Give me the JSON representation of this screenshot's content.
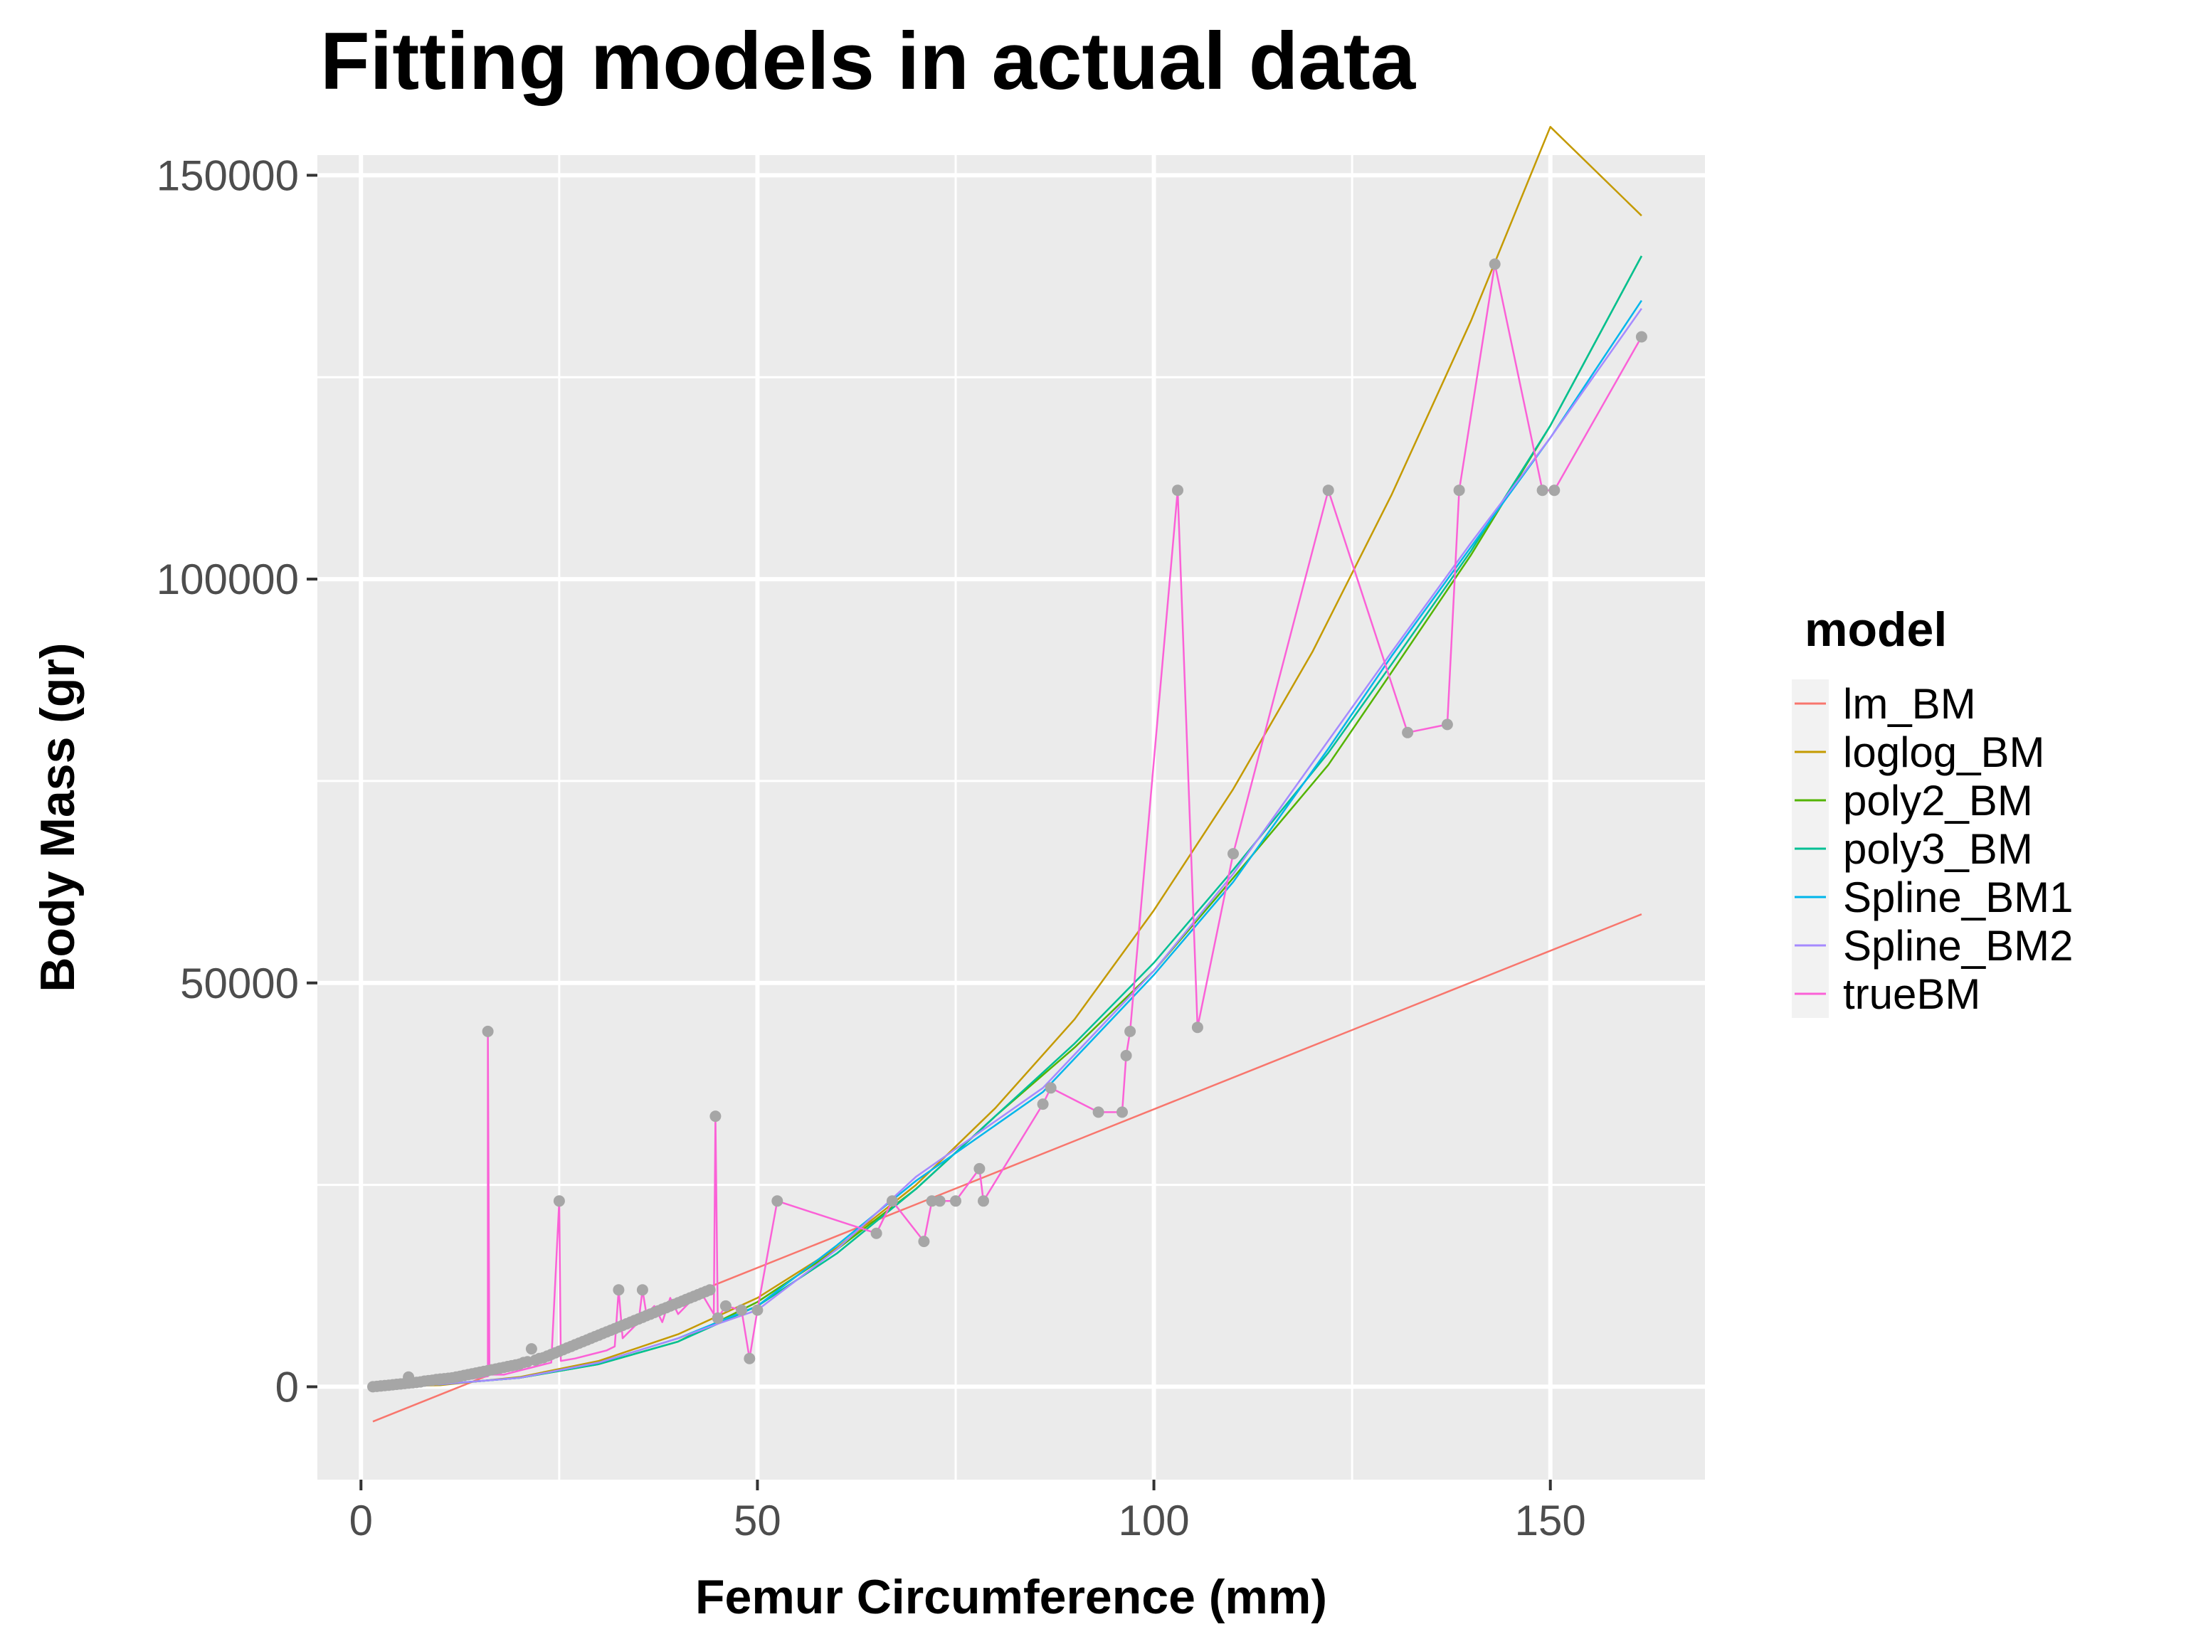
{
  "chart_data": {
    "type": "line",
    "title": "Fitting models in actual data",
    "xlabel": "Femur Circumference (mm)",
    "ylabel": "Body Mass (gr)",
    "xlim": [
      -5.5,
      169.5
    ],
    "ylim": [
      -11500,
      152500
    ],
    "x_ticks": [
      0,
      50,
      100,
      150
    ],
    "x_tick_labels": [
      "0",
      "50",
      "100",
      "150"
    ],
    "x_minor_ticks": [
      25,
      75,
      125
    ],
    "y_ticks": [
      0,
      50000,
      100000,
      150000
    ],
    "y_tick_labels": [
      "0",
      "50000",
      "100000",
      "150000"
    ],
    "y_minor_ticks": [
      25000,
      75000,
      125000
    ],
    "grid": true,
    "background": "#ebebeb",
    "legend": {
      "title": "model",
      "placement": "right",
      "entries": [
        "lm_BM",
        "loglog_BM",
        "poly2_BM",
        "poly3_BM",
        "Spline_BM1",
        "Spline_BM2",
        "trueBM"
      ]
    },
    "point_color": "#a6a6a6",
    "series": [
      {
        "name": "lm_BM",
        "color": "#F8766D",
        "x": [
          1.5,
          161.5
        ],
        "y": [
          -4300,
          58500
        ]
      },
      {
        "name": "loglog_BM",
        "color": "#C49A00",
        "x": [
          1.5,
          10,
          20,
          30,
          40,
          50,
          60,
          70,
          80,
          90,
          100,
          110,
          120,
          130,
          140,
          150,
          161.5
        ],
        "y": [
          0,
          200,
          1200,
          3200,
          6500,
          11000,
          17200,
          25000,
          34500,
          45500,
          59000,
          74000,
          91000,
          110500,
          132000,
          156000,
          145000
        ]
      },
      {
        "name": "poly2_BM",
        "color": "#53B400",
        "x": [
          1.5,
          10,
          20,
          30,
          40,
          50,
          60,
          70,
          80,
          90,
          100,
          110,
          122,
          130,
          140,
          150,
          161.5
        ],
        "y": [
          0,
          300,
          1100,
          2800,
          5600,
          10500,
          17000,
          24500,
          33500,
          42000,
          51500,
          63000,
          77000,
          88500,
          103000,
          119000,
          140000
        ]
      },
      {
        "name": "poly3_BM",
        "color": "#00C094",
        "x": [
          1.5,
          10,
          20,
          30,
          40,
          50,
          60,
          70,
          80,
          90,
          100,
          110,
          122,
          130,
          140,
          150,
          161.5
        ],
        "y": [
          0,
          300,
          1100,
          2800,
          5600,
          10000,
          16500,
          24500,
          33500,
          42500,
          52500,
          64000,
          78500,
          89500,
          103500,
          119000,
          140000
        ]
      },
      {
        "name": "Spline_BM1",
        "color": "#00B6EB",
        "x": [
          1.5,
          10,
          20,
          30,
          40,
          45,
          50,
          60,
          70,
          86,
          100,
          110,
          122,
          130,
          140,
          150,
          161.5
        ],
        "y": [
          0,
          300,
          1100,
          3000,
          6000,
          8000,
          10000,
          17500,
          25500,
          36500,
          51000,
          62500,
          79000,
          90500,
          104000,
          117500,
          134500
        ]
      },
      {
        "name": "Spline_BM2",
        "color": "#A58AFF",
        "x": [
          1.5,
          10,
          20,
          30,
          40,
          45,
          50,
          60,
          70,
          86,
          100,
          110,
          122,
          130,
          140,
          150,
          161.5
        ],
        "y": [
          0,
          300,
          1100,
          3000,
          6000,
          7800,
          9500,
          17000,
          26000,
          37000,
          51500,
          63500,
          80000,
          91000,
          104500,
          117500,
          133500
        ]
      },
      {
        "name": "trueBM",
        "color": "#FB61D7",
        "x": [
          1.5,
          3,
          5,
          8,
          10,
          12,
          14,
          16,
          16,
          16.2,
          18,
          20,
          22,
          24,
          25,
          25.2,
          27,
          29,
          31,
          32,
          32.5,
          33,
          34,
          35,
          35.5,
          36,
          37,
          38,
          39,
          40,
          41,
          42,
          43,
          44.5,
          44.7,
          45,
          46,
          48,
          49,
          50,
          52.5,
          65,
          67,
          71,
          72,
          73,
          75,
          78,
          78.5,
          86,
          87,
          93,
          96,
          96.5,
          97,
          103,
          105.5,
          110,
          122,
          132,
          137,
          138.5,
          143,
          149,
          150.5,
          161.5
        ],
        "y": [
          0,
          200,
          300,
          500,
          700,
          800,
          1000,
          1300,
          44000,
          1500,
          1500,
          2000,
          2500,
          3000,
          23000,
          3200,
          3500,
          4000,
          4500,
          5000,
          12000,
          6000,
          7000,
          8000,
          12000,
          9000,
          10000,
          8000,
          11000,
          9000,
          10000,
          11000,
          11500,
          9000,
          33500,
          8500,
          10000,
          9500,
          3500,
          9500,
          23000,
          19000,
          23000,
          18000,
          23000,
          23000,
          23000,
          27000,
          23000,
          35000,
          37000,
          34000,
          34000,
          41000,
          44000,
          111000,
          44500,
          66000,
          111000,
          81000,
          82000,
          111000,
          139000,
          111000,
          111000,
          130000
        ]
      }
    ],
    "points": {
      "x": [
        1.5,
        2,
        2.5,
        3,
        3.5,
        4,
        4.5,
        5,
        5.5,
        6,
        6,
        6.5,
        7,
        7.5,
        8,
        8.5,
        9,
        9.5,
        10,
        10.5,
        11,
        11.5,
        12,
        12.5,
        13,
        13.5,
        14,
        14.5,
        15,
        15.5,
        16,
        16,
        16.5,
        17,
        17.5,
        18,
        18.5,
        19,
        19.5,
        20,
        20.5,
        21,
        21.5,
        22,
        22.5,
        23,
        23.5,
        24,
        24.5,
        25,
        25,
        25.5,
        26,
        26.5,
        27,
        27.5,
        28,
        28.5,
        29,
        29.5,
        30,
        30.5,
        31,
        31.5,
        32,
        32.5,
        32.5,
        33,
        33.5,
        34,
        34.5,
        35,
        35.5,
        35.5,
        36,
        36.5,
        37,
        37.5,
        38,
        38.5,
        39,
        39.5,
        40,
        40.5,
        41,
        41.5,
        42,
        42.5,
        43,
        43.5,
        44,
        44.7,
        45,
        46,
        48,
        49,
        50,
        52.5,
        65,
        67,
        71,
        72,
        73,
        75,
        78,
        78.5,
        86,
        87,
        93,
        96,
        96.5,
        97,
        103,
        105.5,
        110,
        122,
        132,
        137,
        138.5,
        143,
        149,
        150.5,
        161.5
      ],
      "y": [
        0,
        50,
        100,
        150,
        200,
        250,
        300,
        350,
        400,
        450,
        1200,
        500,
        550,
        600,
        700,
        750,
        800,
        900,
        950,
        1000,
        1050,
        1100,
        1200,
        1300,
        1400,
        1500,
        1600,
        1700,
        1800,
        1900,
        2000,
        44000,
        2100,
        2200,
        2300,
        2400,
        2500,
        2600,
        2700,
        2800,
        3000,
        3100,
        4700,
        3300,
        3500,
        3600,
        3800,
        4000,
        4200,
        4400,
        23000,
        4600,
        4800,
        5000,
        5200,
        5400,
        5600,
        5800,
        6000,
        6200,
        6400,
        6600,
        6800,
        7000,
        7200,
        7400,
        12000,
        7600,
        7800,
        8000,
        8200,
        8400,
        8600,
        12000,
        8800,
        9000,
        9200,
        9400,
        9600,
        9800,
        10000,
        10200,
        10400,
        10600,
        10800,
        11000,
        11200,
        11400,
        11600,
        11800,
        12000,
        33500,
        8500,
        10000,
        9500,
        3500,
        9500,
        23000,
        19000,
        23000,
        18000,
        23000,
        23000,
        23000,
        27000,
        23000,
        35000,
        37000,
        34000,
        34000,
        41000,
        44000,
        111000,
        44500,
        66000,
        111000,
        81000,
        82000,
        111000,
        139000,
        111000,
        111000,
        130000
      ]
    }
  }
}
